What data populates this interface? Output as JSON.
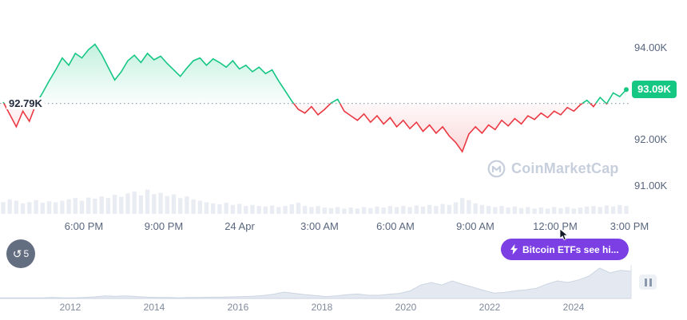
{
  "chart_data": [
    {
      "name": "btc-price-24h",
      "type": "line",
      "baseline_label": "92.79K",
      "baseline_value": 92.79,
      "current_price_label": "93.09K",
      "current_price": 93.09,
      "x_labels": [
        "6:00 PM",
        "9:00 PM",
        "24 Apr",
        "3:00 AM",
        "6:00 AM",
        "9:00 AM",
        "12:00 PM",
        "3:00 PM"
      ],
      "y_axis_labels": [
        "94.00K",
        "92.00K",
        "91.00K"
      ],
      "y_axis_values": [
        94.0,
        92.0,
        91.0
      ],
      "ylim": [
        90.9,
        94.6
      ],
      "prices": [
        92.82,
        92.55,
        92.28,
        92.62,
        92.4,
        92.78,
        93.02,
        93.28,
        93.52,
        93.78,
        93.62,
        93.88,
        93.78,
        93.96,
        94.08,
        93.86,
        93.58,
        93.3,
        93.48,
        93.72,
        93.84,
        93.68,
        93.88,
        93.74,
        93.82,
        93.66,
        93.52,
        93.38,
        93.56,
        93.72,
        93.78,
        93.62,
        93.76,
        93.68,
        93.58,
        93.72,
        93.54,
        93.62,
        93.48,
        93.58,
        93.44,
        93.52,
        93.28,
        93.06,
        92.84,
        92.66,
        92.58,
        92.72,
        92.54,
        92.66,
        92.8,
        92.88,
        92.62,
        92.52,
        92.42,
        92.56,
        92.38,
        92.52,
        92.34,
        92.48,
        92.28,
        92.42,
        92.24,
        92.38,
        92.18,
        92.32,
        92.14,
        92.28,
        92.08,
        91.94,
        91.74,
        92.12,
        92.28,
        92.14,
        92.32,
        92.22,
        92.42,
        92.3,
        92.46,
        92.34,
        92.52,
        92.44,
        92.58,
        92.48,
        92.62,
        92.54,
        92.7,
        92.62,
        92.76,
        92.86,
        92.72,
        92.92,
        92.78,
        93.02,
        92.94,
        93.09
      ],
      "volumes": [
        0.45,
        0.55,
        0.5,
        0.4,
        0.45,
        0.52,
        0.42,
        0.48,
        0.44,
        0.5,
        0.55,
        0.6,
        0.5,
        0.62,
        0.58,
        0.66,
        0.6,
        0.72,
        0.65,
        0.78,
        0.85,
        0.7,
        0.92,
        0.75,
        0.8,
        0.68,
        0.74,
        0.6,
        0.66,
        0.55,
        0.5,
        0.44,
        0.4,
        0.36,
        0.42,
        0.34,
        0.38,
        0.3,
        0.34,
        0.3,
        0.28,
        0.32,
        0.26,
        0.3,
        0.36,
        0.42,
        0.3,
        0.26,
        0.3,
        0.24,
        0.22,
        0.26,
        0.2,
        0.24,
        0.2,
        0.26,
        0.22,
        0.28,
        0.24,
        0.3,
        0.26,
        0.3,
        0.26,
        0.32,
        0.28,
        0.34,
        0.3,
        0.38,
        0.34,
        0.44,
        0.6,
        0.52,
        0.4,
        0.34,
        0.3,
        0.26,
        0.3,
        0.24,
        0.28,
        0.22,
        0.26,
        0.2,
        0.24,
        0.2,
        0.26,
        0.22,
        0.26,
        0.2,
        0.24,
        0.28,
        0.3,
        0.26,
        0.32,
        0.28,
        0.34,
        0.3
      ],
      "colors": {
        "up": "#16c784",
        "down": "#ea3943",
        "baseline": "#97a2b5",
        "volume": "#e9edf3",
        "badge": "#16c784",
        "button": "#7b3fe4"
      }
    },
    {
      "name": "btc-alltime-timeline",
      "type": "area",
      "categories": [
        "2012",
        "2014",
        "2016",
        "2018",
        "2020",
        "2022",
        "2024"
      ],
      "values": [
        0.02,
        0.02,
        0.02,
        0.02,
        0.02,
        0.03,
        0.02,
        0.02,
        0.03,
        0.05,
        0.08,
        0.07,
        0.08,
        0.06,
        0.04,
        0.03,
        0.03,
        0.02,
        0.03,
        0.03,
        0.04,
        0.04,
        0.05,
        0.06,
        0.07,
        0.09,
        0.13,
        0.2,
        0.16,
        0.12,
        0.09,
        0.06,
        0.08,
        0.12,
        0.14,
        0.1,
        0.1,
        0.13,
        0.16,
        0.24,
        0.42,
        0.5,
        0.42,
        0.55,
        0.44,
        0.35,
        0.25,
        0.17,
        0.19,
        0.24,
        0.27,
        0.32,
        0.45,
        0.55,
        0.5,
        0.58,
        0.7,
        0.95,
        0.8,
        0.88,
        0.85
      ]
    }
  ],
  "watermark": {
    "text": "CoinMarketCap"
  },
  "history_badge": {
    "count": "5"
  },
  "etf_button": {
    "label": "Bitcoin ETFs see hi..."
  }
}
